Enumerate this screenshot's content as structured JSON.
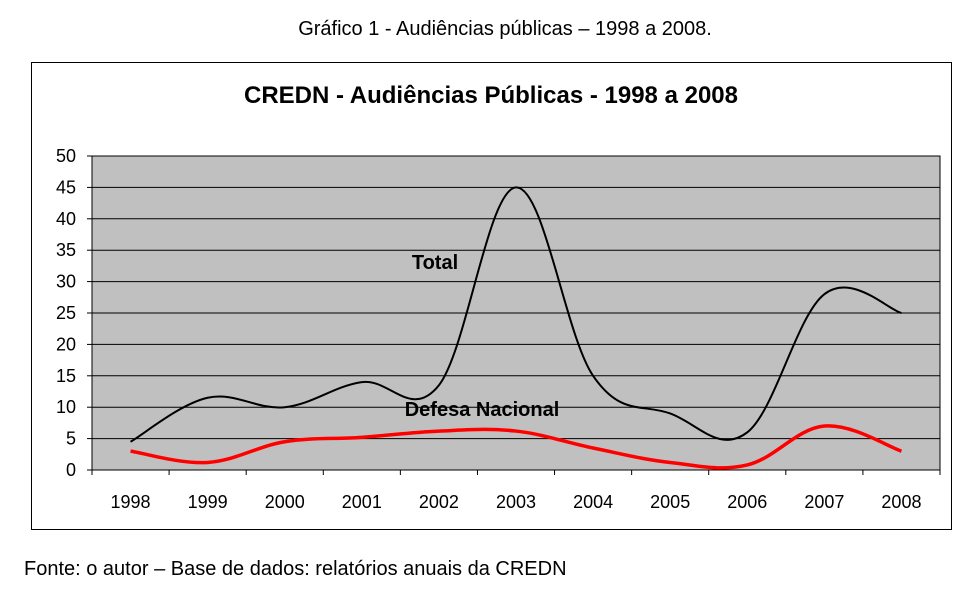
{
  "caption": "Gráfico 1  -  Audiências públicas – 1998 a 2008.",
  "source": "Fonte: o autor – Base de dados: relatórios anuais da CREDN",
  "chart_data": {
    "type": "line",
    "title": "CREDN - Audiências Públicas - 1998 a 2008",
    "xlabel": "",
    "ylabel": "",
    "ylim": [
      0,
      50
    ],
    "yticks": [
      0,
      5,
      10,
      15,
      20,
      25,
      30,
      35,
      40,
      45,
      50
    ],
    "categories": [
      "1998",
      "1999",
      "2000",
      "2001",
      "2002",
      "2003",
      "2004",
      "2005",
      "2006",
      "2007",
      "2008"
    ],
    "grid": true,
    "legend": "none",
    "plot_background": "#c0c0c0",
    "series": [
      {
        "name": "Total",
        "color": "#000000",
        "values": [
          4.5,
          11.5,
          10,
          14,
          13.5,
          45,
          15,
          9,
          6,
          28,
          25
        ]
      },
      {
        "name": "Defesa Nacional",
        "color": "#ff0000",
        "values": [
          3,
          1.2,
          4.5,
          5.2,
          6.2,
          6.2,
          3.5,
          1.2,
          0.8,
          7,
          3
        ]
      }
    ],
    "annotations": [
      {
        "text": "Total",
        "series": "Total"
      },
      {
        "text": "Defesa Nacional",
        "series": "Defesa Nacional"
      }
    ]
  }
}
